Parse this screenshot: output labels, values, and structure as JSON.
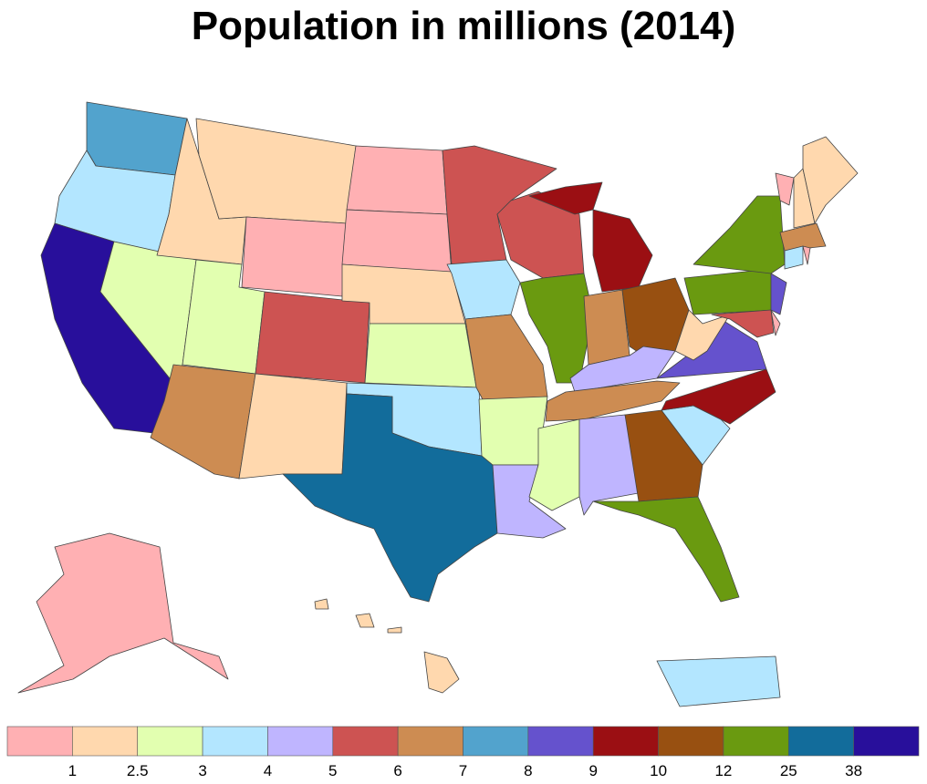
{
  "chart_data": {
    "type": "choropleth",
    "title": "Population  in millions (2014)",
    "legend": {
      "placement": "bottom",
      "colors": [
        "#ffb0b3",
        "#ffd8ae",
        "#e2ffb0",
        "#b3e6ff",
        "#bfb5ff",
        "#cd5352",
        "#cd8c52",
        "#52a3cd",
        "#6552cd",
        "#9b0f13",
        "#985011",
        "#6a9a10",
        "#126c9b",
        "#280f9b"
      ],
      "labels": [
        "1",
        "2.5",
        "3",
        "4",
        "5",
        "6",
        "7",
        "8",
        "9",
        "10",
        "12",
        "25",
        "38"
      ]
    },
    "state_bins": {
      "WA": 7,
      "OR": 3,
      "CA": 13,
      "NV": 2,
      "ID": 1,
      "MT": 1,
      "WY": 0,
      "UT": 2,
      "AZ": 6,
      "CO": 5,
      "NM": 1,
      "ND": 0,
      "SD": 0,
      "NE": 1,
      "KS": 2,
      "OK": 3,
      "TX": 12,
      "MN": 5,
      "IA": 3,
      "MO": 6,
      "AR": 2,
      "LA": 4,
      "WI": 5,
      "IL": 11,
      "MI": 9,
      "IN": 6,
      "OH": 10,
      "KY": 4,
      "TN": 6,
      "MS": 2,
      "AL": 4,
      "GA": 10,
      "FL": 11,
      "SC": 3,
      "NC": 9,
      "VA": 8,
      "WV": 1,
      "PA": 11,
      "NY": 11,
      "MD": 5,
      "DE": 0,
      "NJ": 8,
      "VT": 0,
      "NH": 1,
      "ME": 1,
      "MA": 6,
      "CT": 3,
      "RI": 0,
      "AK": 0,
      "HI": 1,
      "PR": 3
    }
  }
}
